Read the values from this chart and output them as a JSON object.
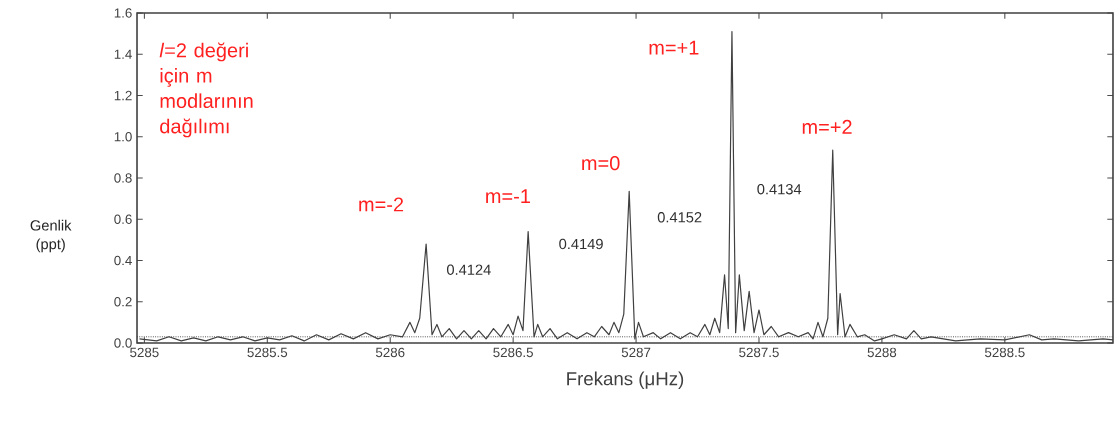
{
  "chart_data": {
    "type": "line",
    "xlabel": "Frekans (μHz)",
    "ylabel": "Genlik (ppt)",
    "xlim": [
      5284.97,
      5288.94
    ],
    "ylim": [
      0,
      1.6
    ],
    "xticks": [
      5285,
      5285.5,
      5286,
      5286.5,
      5287,
      5287.5,
      5288,
      5288.5
    ],
    "yticks": [
      {
        "value": 0,
        "label": "0.0"
      },
      {
        "value": 0.2,
        "label": "0.2"
      },
      {
        "value": 0.4,
        "label": "0.4"
      },
      {
        "value": 0.6,
        "label": "0.6"
      },
      {
        "value": 0.8,
        "label": "0.8"
      },
      {
        "value": 1.0,
        "label": "1.0"
      },
      {
        "value": 1.2,
        "label": "1.2"
      },
      {
        "value": 1.4,
        "label": "1.4"
      },
      {
        "value": 1.6,
        "label": "1.6"
      }
    ],
    "grid": false,
    "marker": "none",
    "line_style": "solid",
    "series": [
      {
        "color": "#404040",
        "x": [
          5284.98,
          5285.05,
          5285.1,
          5285.15,
          5285.2,
          5285.25,
          5285.3,
          5285.35,
          5285.4,
          5285.45,
          5285.5,
          5285.55,
          5285.6,
          5285.65,
          5285.7,
          5285.75,
          5285.8,
          5285.85,
          5285.9,
          5285.95,
          5286.0,
          5286.05,
          5286.08,
          5286.1,
          5286.12,
          5286.146,
          5286.17,
          5286.19,
          5286.21,
          5286.24,
          5286.27,
          5286.3,
          5286.33,
          5286.36,
          5286.39,
          5286.42,
          5286.45,
          5286.48,
          5286.5,
          5286.52,
          5286.54,
          5286.561,
          5286.585,
          5286.6,
          5286.62,
          5286.65,
          5286.68,
          5286.72,
          5286.76,
          5286.8,
          5286.83,
          5286.86,
          5286.89,
          5286.91,
          5286.93,
          5286.95,
          5286.972,
          5286.995,
          5287.01,
          5287.03,
          5287.07,
          5287.1,
          5287.14,
          5287.18,
          5287.22,
          5287.25,
          5287.28,
          5287.3,
          5287.32,
          5287.34,
          5287.36,
          5287.375,
          5287.39,
          5287.405,
          5287.42,
          5287.44,
          5287.46,
          5287.48,
          5287.5,
          5287.52,
          5287.55,
          5287.58,
          5287.62,
          5287.66,
          5287.7,
          5287.72,
          5287.74,
          5287.76,
          5287.78,
          5287.8,
          5287.82,
          5287.83,
          5287.85,
          5287.87,
          5287.9,
          5287.93,
          5287.97,
          5288.0,
          5288.05,
          5288.1,
          5288.13,
          5288.16,
          5288.2,
          5288.3,
          5288.4,
          5288.5,
          5288.6,
          5288.65,
          5288.7,
          5288.8,
          5288.9,
          5288.94
        ],
        "values": [
          0.02,
          0.01,
          0.03,
          0.01,
          0.025,
          0.01,
          0.03,
          0.015,
          0.03,
          0.01,
          0.025,
          0.015,
          0.035,
          0.01,
          0.04,
          0.015,
          0.045,
          0.02,
          0.05,
          0.02,
          0.04,
          0.03,
          0.1,
          0.05,
          0.12,
          0.48,
          0.04,
          0.09,
          0.03,
          0.07,
          0.02,
          0.06,
          0.02,
          0.06,
          0.02,
          0.07,
          0.03,
          0.09,
          0.04,
          0.13,
          0.06,
          0.54,
          0.03,
          0.09,
          0.03,
          0.07,
          0.02,
          0.05,
          0.02,
          0.05,
          0.03,
          0.08,
          0.04,
          0.1,
          0.05,
          0.14,
          0.735,
          0.02,
          0.1,
          0.03,
          0.05,
          0.02,
          0.05,
          0.02,
          0.05,
          0.03,
          0.09,
          0.04,
          0.12,
          0.05,
          0.33,
          0.07,
          1.51,
          0.05,
          0.33,
          0.06,
          0.25,
          0.05,
          0.16,
          0.04,
          0.08,
          0.03,
          0.05,
          0.03,
          0.05,
          0.02,
          0.1,
          0.03,
          0.12,
          0.935,
          0.04,
          0.24,
          0.03,
          0.09,
          0.03,
          0.04,
          0.01,
          0.02,
          0.04,
          0.02,
          0.06,
          0.02,
          0.03,
          0.01,
          0.02,
          0.015,
          0.04,
          0.015,
          0.02,
          0.01,
          0.02,
          0.015
        ]
      }
    ],
    "ref_lines": [
      {
        "axis": "y",
        "value": 0.03,
        "color": "#404040",
        "line_style": "dotted"
      }
    ],
    "annotations": [
      "*l*=2 değeri için m modlarının dağılımı",
      "m=-2",
      "m=-1",
      "m=0",
      "m=+1",
      "m=+2",
      "0.4124",
      "0.4149",
      "0.4152",
      "0.4134"
    ]
  }
}
